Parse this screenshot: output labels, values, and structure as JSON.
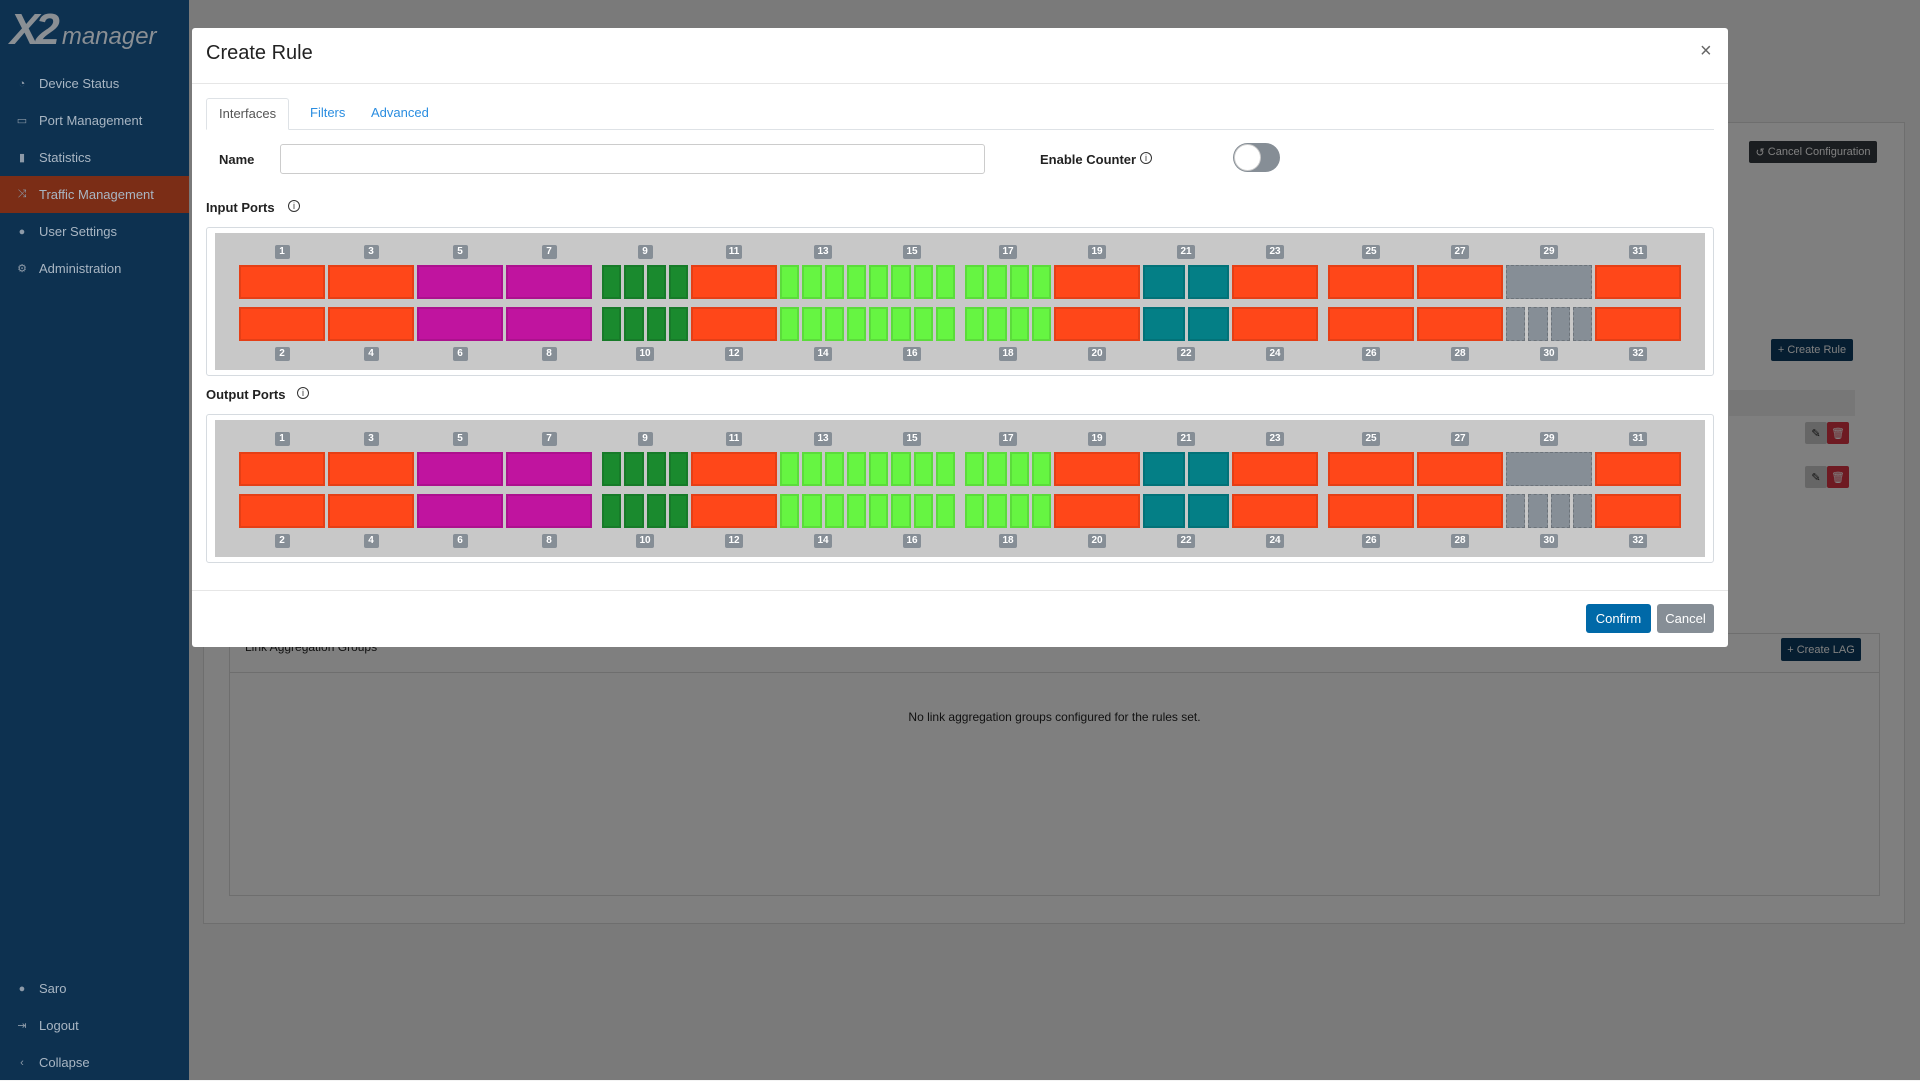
{
  "logo": {
    "mark": "X2",
    "text": "manager"
  },
  "sidebar": {
    "items": [
      {
        "label": "Device Status",
        "icon": "gauge-icon",
        "glyph": "◔"
      },
      {
        "label": "Port Management",
        "icon": "ethernet-port-icon",
        "glyph": "▭"
      },
      {
        "label": "Statistics",
        "icon": "bar-chart-icon",
        "glyph": "▮"
      },
      {
        "label": "Traffic Management",
        "icon": "shuffle-icon",
        "glyph": "⤨",
        "active": true
      },
      {
        "label": "User Settings",
        "icon": "user-circle-icon",
        "glyph": "●"
      },
      {
        "label": "Administration",
        "icon": "gear-icon",
        "glyph": "⚙"
      }
    ],
    "bottom": [
      {
        "label": "Saro",
        "icon": "user-icon",
        "glyph": "●"
      },
      {
        "label": "Logout",
        "icon": "logout-icon",
        "glyph": "⇥"
      },
      {
        "label": "Collapse",
        "icon": "chevron-left-icon",
        "glyph": "‹"
      }
    ]
  },
  "background": {
    "cancel_configuration": "Cancel Configuration",
    "create_rule": "Create Rule",
    "lag_title": "Link Aggregation Groups",
    "create_lag": "Create LAG",
    "lag_empty": "No link aggregation groups configured for the rules set."
  },
  "modal": {
    "title": "Create Rule",
    "close": "×",
    "tabs": [
      "Interfaces",
      "Filters",
      "Advanced"
    ],
    "active_tab": "Interfaces",
    "name_label": "Name",
    "name_value": "",
    "enable_counter_label": "Enable Counter",
    "enable_counter": false,
    "panels": [
      {
        "label": "Input Ports"
      },
      {
        "label": "Output Ports"
      }
    ],
    "confirm": "Confirm",
    "cancel": "Cancel"
  },
  "colors": {
    "orange": "#ff4719",
    "magenta": "#c0149f",
    "darkgreen": "#1a8a2e",
    "lightgreen": "#66f542",
    "teal": "#047f86",
    "gray": "#868e96",
    "primary": "#0069a8",
    "cancel": "#868e96"
  },
  "ports": [
    {
      "top": "1",
      "bottom": "2",
      "color": "orange",
      "split_top": 1,
      "split_bottom": 1
    },
    {
      "top": "3",
      "bottom": "4",
      "color": "orange",
      "split_top": 1,
      "split_bottom": 1
    },
    {
      "top": "5",
      "bottom": "6",
      "color": "magenta",
      "split_top": 1,
      "split_bottom": 1
    },
    {
      "top": "7",
      "bottom": "8",
      "color": "magenta",
      "split_top": 1,
      "split_bottom": 1
    },
    {
      "top": "9",
      "bottom": "10",
      "color": "darkgreen",
      "split_top": 4,
      "split_bottom": 4
    },
    {
      "top": "11",
      "bottom": "12",
      "color": "orange",
      "split_top": 1,
      "split_bottom": 1
    },
    {
      "top": "13",
      "bottom": "14",
      "color": "lightgreen",
      "split_top": 4,
      "split_bottom": 4
    },
    {
      "top": "15",
      "bottom": "16",
      "color": "lightgreen",
      "split_top": 4,
      "split_bottom": 4
    },
    {
      "top": "17",
      "bottom": "18",
      "color": "lightgreen",
      "split_top": 4,
      "split_bottom": 4
    },
    {
      "top": "19",
      "bottom": "20",
      "color": "orange",
      "split_top": 1,
      "split_bottom": 1
    },
    {
      "top": "21",
      "bottom": "22",
      "color": "teal",
      "split_top": 2,
      "split_bottom": 2
    },
    {
      "top": "23",
      "bottom": "24",
      "color": "orange",
      "split_top": 1,
      "split_bottom": 1
    },
    {
      "top": "25",
      "bottom": "26",
      "color": "orange",
      "split_top": 1,
      "split_bottom": 1
    },
    {
      "top": "27",
      "bottom": "28",
      "color": "orange",
      "split_top": 1,
      "split_bottom": 1
    },
    {
      "top": "29",
      "bottom": "30",
      "color": "gray",
      "split_top": 1,
      "split_bottom": 4
    },
    {
      "top": "31",
      "bottom": "32",
      "color": "orange",
      "split_top": 1,
      "split_bottom": 1
    }
  ]
}
